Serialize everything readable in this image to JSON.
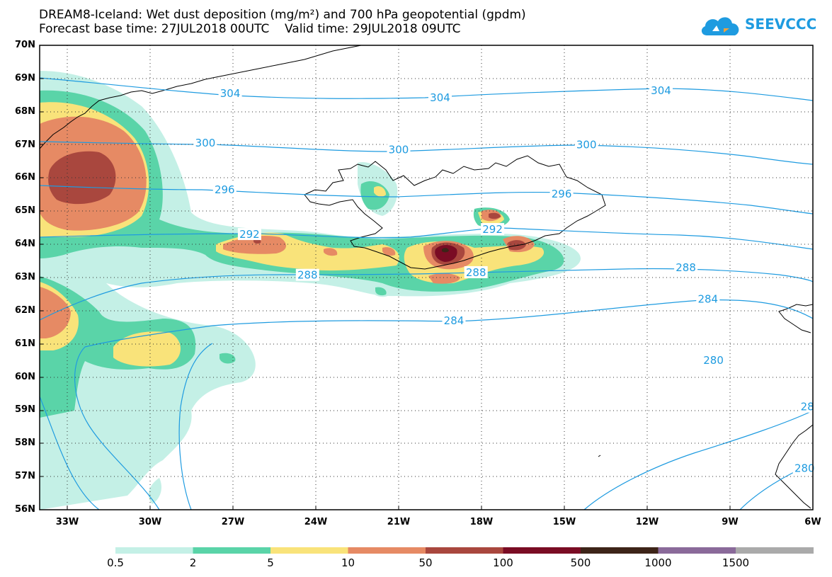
{
  "title": {
    "line1": "DREAM8-Iceland: Wet dust deposition (mg/m²) and 700 hPa geopotential (gpdm)",
    "line2": "Forecast base time: 27JUL2018 00UTC    Valid time: 29JUL2018 09UTC"
  },
  "logo": {
    "text": "SEEVCCC",
    "icon": "cloud-icon",
    "color": "#1e9be0"
  },
  "colors": {
    "contour": "#1e9be0",
    "frame": "#000000",
    "grid": "#333333",
    "coast": "#000000"
  },
  "map": {
    "lon_range": [
      -34.0,
      -6.0
    ],
    "lat_range": [
      56.0,
      70.0
    ],
    "lat_labels": [
      "70N",
      "69N",
      "68N",
      "67N",
      "66N",
      "65N",
      "64N",
      "63N",
      "62N",
      "61N",
      "60N",
      "59N",
      "58N",
      "57N",
      "56N"
    ],
    "lon_labels": [
      "33W",
      "30W",
      "27W",
      "24W",
      "21W",
      "18W",
      "15W",
      "12W",
      "9W",
      "6W"
    ],
    "contour_labels": [
      {
        "text": "304",
        "lon": -27.1,
        "lat": 68.55
      },
      {
        "text": "304",
        "lon": -19.5,
        "lat": 68.42
      },
      {
        "text": "304",
        "lon": -11.5,
        "lat": 68.63
      },
      {
        "text": "300",
        "lon": -28.0,
        "lat": 67.06
      },
      {
        "text": "300",
        "lon": -21.0,
        "lat": 66.85
      },
      {
        "text": "300",
        "lon": -14.2,
        "lat": 67.0
      },
      {
        "text": "296",
        "lon": -27.3,
        "lat": 65.65
      },
      {
        "text": "296",
        "lon": -15.1,
        "lat": 65.52
      },
      {
        "text": "292",
        "lon": -26.4,
        "lat": 64.3
      },
      {
        "text": "292",
        "lon": -17.6,
        "lat": 64.45
      },
      {
        "text": "288",
        "lon": -24.3,
        "lat": 63.07
      },
      {
        "text": "288",
        "lon": -18.2,
        "lat": 63.15
      },
      {
        "text": "288",
        "lon": -10.6,
        "lat": 63.3
      },
      {
        "text": "284",
        "lon": -19.0,
        "lat": 61.7
      },
      {
        "text": "284",
        "lon": -9.8,
        "lat": 62.35
      },
      {
        "text": "280",
        "lon": -9.6,
        "lat": 60.5
      },
      {
        "text": "28",
        "lon": -6.2,
        "lat": 59.1
      },
      {
        "text": "280",
        "lon": -6.3,
        "lat": 57.25
      }
    ]
  },
  "legend": {
    "labels": [
      "0.5",
      "2",
      "5",
      "10",
      "50",
      "100",
      "500",
      "1000",
      "1500"
    ],
    "colors": [
      "#c4f0e6",
      "#5ad4a8",
      "#f9e37a",
      "#e68a64",
      "#a9473e",
      "#7a0c24",
      "#3d2418",
      "#8a6a9a",
      "#aaaaaa"
    ]
  }
}
